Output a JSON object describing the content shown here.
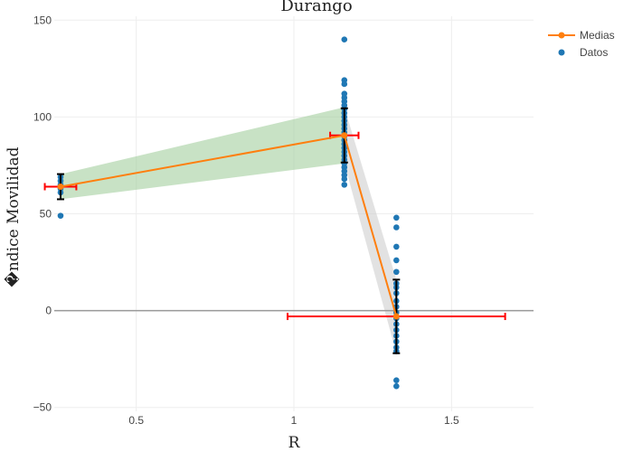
{
  "chart_data": {
    "type": "scatter",
    "title": "Durango",
    "xlabel": "R",
    "ylabel": "�ndice Movilidad",
    "xlim": [
      0.24,
      1.76
    ],
    "ylim": [
      -52,
      152
    ],
    "x_ticks": [
      {
        "value": 0.5,
        "label": "0.5"
      },
      {
        "value": 1.0,
        "label": "1"
      },
      {
        "value": 1.5,
        "label": "1.5"
      }
    ],
    "y_ticks": [
      {
        "value": -50,
        "label": "−50"
      },
      {
        "value": 0,
        "label": "0"
      },
      {
        "value": 50,
        "label": "50"
      },
      {
        "value": 100,
        "label": "100"
      },
      {
        "value": 150,
        "label": "150"
      }
    ],
    "grid": true,
    "zero_line": true,
    "legend": {
      "position": "top-right",
      "entries": [
        {
          "name": "Medias",
          "color": "#ff7f0e",
          "kind": "line-marker"
        },
        {
          "name": "Datos",
          "color": "#1f77b4",
          "kind": "marker"
        }
      ]
    },
    "colors": {
      "means": "#ff7f0e",
      "points": "#1f77b4",
      "x_error": "#ff0000",
      "y_error": "#000000",
      "band_green": "#a3cf9f",
      "band_grey": "#cfcfcf"
    },
    "series": [
      {
        "name": "Medias",
        "x": [
          0.26,
          1.16,
          1.325
        ],
        "y": [
          64,
          90.5,
          -3
        ],
        "x_error": [
          0.05,
          0.045,
          0.345
        ],
        "y_error": [
          6.5,
          14,
          19
        ]
      },
      {
        "name": "Datos",
        "points": [
          {
            "x": 0.26,
            "y": 49
          },
          {
            "x": 0.26,
            "y": 61
          },
          {
            "x": 0.26,
            "y": 63
          },
          {
            "x": 0.26,
            "y": 65
          },
          {
            "x": 0.26,
            "y": 67
          },
          {
            "x": 0.26,
            "y": 69
          },
          {
            "x": 1.16,
            "y": 140
          },
          {
            "x": 1.16,
            "y": 119
          },
          {
            "x": 1.16,
            "y": 117
          },
          {
            "x": 1.16,
            "y": 112
          },
          {
            "x": 1.16,
            "y": 110
          },
          {
            "x": 1.16,
            "y": 108
          },
          {
            "x": 1.16,
            "y": 106
          },
          {
            "x": 1.16,
            "y": 104
          },
          {
            "x": 1.16,
            "y": 102
          },
          {
            "x": 1.16,
            "y": 100
          },
          {
            "x": 1.16,
            "y": 98
          },
          {
            "x": 1.16,
            "y": 96
          },
          {
            "x": 1.16,
            "y": 94
          },
          {
            "x": 1.16,
            "y": 92
          },
          {
            "x": 1.16,
            "y": 90
          },
          {
            "x": 1.16,
            "y": 88
          },
          {
            "x": 1.16,
            "y": 86
          },
          {
            "x": 1.16,
            "y": 84
          },
          {
            "x": 1.16,
            "y": 82
          },
          {
            "x": 1.16,
            "y": 80
          },
          {
            "x": 1.16,
            "y": 78
          },
          {
            "x": 1.16,
            "y": 76
          },
          {
            "x": 1.16,
            "y": 74
          },
          {
            "x": 1.16,
            "y": 72
          },
          {
            "x": 1.16,
            "y": 70
          },
          {
            "x": 1.16,
            "y": 68
          },
          {
            "x": 1.16,
            "y": 65
          },
          {
            "x": 1.325,
            "y": 48
          },
          {
            "x": 1.325,
            "y": 43
          },
          {
            "x": 1.325,
            "y": 33
          },
          {
            "x": 1.325,
            "y": 26
          },
          {
            "x": 1.325,
            "y": 20
          },
          {
            "x": 1.325,
            "y": 14
          },
          {
            "x": 1.325,
            "y": 12
          },
          {
            "x": 1.325,
            "y": 9
          },
          {
            "x": 1.325,
            "y": 5
          },
          {
            "x": 1.325,
            "y": 2
          },
          {
            "x": 1.325,
            "y": -1
          },
          {
            "x": 1.325,
            "y": -4
          },
          {
            "x": 1.325,
            "y": -7
          },
          {
            "x": 1.325,
            "y": -10
          },
          {
            "x": 1.325,
            "y": -13
          },
          {
            "x": 1.325,
            "y": -16
          },
          {
            "x": 1.325,
            "y": -19
          },
          {
            "x": 1.325,
            "y": -21
          },
          {
            "x": 1.325,
            "y": -36
          },
          {
            "x": 1.325,
            "y": -39
          }
        ]
      }
    ],
    "bands": [
      {
        "color": "green",
        "x": [
          0.26,
          1.16
        ],
        "upper": [
          70.5,
          105
        ],
        "lower": [
          57.5,
          76
        ]
      },
      {
        "color": "grey",
        "x": [
          1.16,
          1.325
        ],
        "upper": [
          105,
          16
        ],
        "lower": [
          76,
          -22
        ]
      }
    ]
  }
}
